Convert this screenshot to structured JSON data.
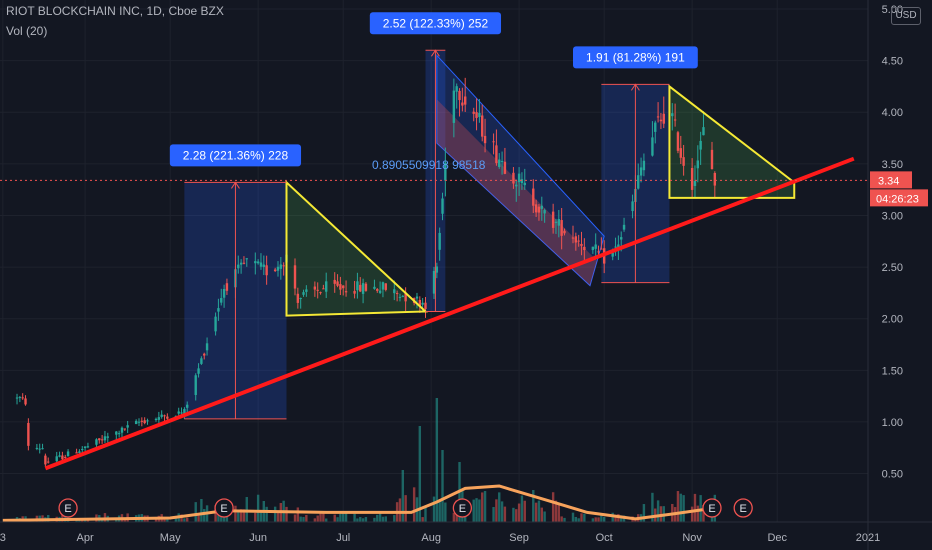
{
  "header": {
    "symbol_line": "RIOT BLOCKCHAIN INC, 1D, Cboe BZX",
    "volume_label": "Vol (20)",
    "currency_badge": "USD"
  },
  "price_tags": {
    "last_price": "3.34",
    "countdown": "04:26:23"
  },
  "colors": {
    "background": "#131722",
    "up": "#26a69a",
    "down": "#ef5350",
    "trendline": "#ff1a1a",
    "triangle": "#f5e935",
    "measure_box": "#1e4a7a",
    "measure_label": "#2962ff",
    "volume_ma": "#f7a35c",
    "last_price_line": "#ef5350"
  },
  "chart_data": {
    "type": "candlestick",
    "title": "RIOT BLOCKCHAIN INC, 1D, Cboe BZX",
    "x_ticks": [
      "3",
      "Apr",
      "May",
      "Jun",
      "Jul",
      "Aug",
      "Sep",
      "Oct",
      "Nov",
      "Dec",
      "2021"
    ],
    "y_ticks": [
      "0.50",
      "1.00",
      "1.50",
      "2.00",
      "2.50",
      "3.00",
      "3.50",
      "4.00",
      "4.50",
      "5.00"
    ],
    "ylim": [
      0.05,
      5.0
    ],
    "y_scale": "linear",
    "last_price": 3.34,
    "anchors": [
      {
        "x": "Mar 18",
        "y": 0.6
      },
      {
        "x": "Apr 1",
        "y": 0.75
      },
      {
        "x": "Apr 20",
        "y": 1.0
      },
      {
        "x": "May 6",
        "y": 1.1
      },
      {
        "x": "May 12",
        "y": 1.6
      },
      {
        "x": "May 20",
        "y": 2.3
      },
      {
        "x": "May 28",
        "y": 2.55
      },
      {
        "x": "Jun 5",
        "y": 2.45
      },
      {
        "x": "Jun 11",
        "y": 2.6
      },
      {
        "x": "Jun 15",
        "y": 2.2
      },
      {
        "x": "Jun 25",
        "y": 2.3
      },
      {
        "x": "Jul 15",
        "y": 2.3
      },
      {
        "x": "Jul 30",
        "y": 2.15
      },
      {
        "x": "Aug 3",
        "y": 2.5
      },
      {
        "x": "Aug 6",
        "y": 3.5
      },
      {
        "x": "Aug 9",
        "y": 4.3
      },
      {
        "x": "Aug 14",
        "y": 4.1
      },
      {
        "x": "Aug 24",
        "y": 3.6
      },
      {
        "x": "Sep 2",
        "y": 3.3
      },
      {
        "x": "Sep 10",
        "y": 3.0
      },
      {
        "x": "Sep 20",
        "y": 2.8
      },
      {
        "x": "Oct 3",
        "y": 2.55
      },
      {
        "x": "Oct 10",
        "y": 3.0
      },
      {
        "x": "Oct 14",
        "y": 3.45
      },
      {
        "x": "Oct 20",
        "y": 3.9
      },
      {
        "x": "Oct 24",
        "y": 4.05
      },
      {
        "x": "Oct 28",
        "y": 3.6
      },
      {
        "x": "Nov 1",
        "y": 3.3
      },
      {
        "x": "Nov 5",
        "y": 3.8
      },
      {
        "x": "Nov 9",
        "y": 3.34
      }
    ],
    "candle_count": 170,
    "volume": {
      "label": "Vol (20)",
      "spikes": [
        {
          "x": "Jul 28",
          "v": 1.2
        },
        {
          "x": "Aug 3",
          "v": 1.55
        },
        {
          "x": "Aug 5",
          "v": 0.9
        },
        {
          "x": "Aug 7",
          "v": 0.7
        },
        {
          "x": "Aug 11",
          "v": 0.75
        },
        {
          "x": "Jul 22",
          "v": 0.65
        },
        {
          "x": "Oct 24",
          "v": 0.55
        }
      ],
      "ma": [
        {
          "x": "Mar 3",
          "v": 0.02
        },
        {
          "x": "May 1",
          "v": 0.05
        },
        {
          "x": "May 20",
          "v": 0.14
        },
        {
          "x": "Jun 25",
          "v": 0.12
        },
        {
          "x": "Jul 25",
          "v": 0.12
        },
        {
          "x": "Aug 3",
          "v": 0.25
        },
        {
          "x": "Aug 13",
          "v": 0.42
        },
        {
          "x": "Aug 25",
          "v": 0.45
        },
        {
          "x": "Sep 10",
          "v": 0.28
        },
        {
          "x": "Sep 25",
          "v": 0.12
        },
        {
          "x": "Oct 12",
          "v": 0.04
        },
        {
          "x": "Oct 25",
          "v": 0.1
        },
        {
          "x": "Nov 10",
          "v": 0.18
        }
      ]
    },
    "annotations": {
      "trendline": [
        {
          "x": "Mar 18",
          "y": 0.55
        },
        {
          "x": "Dec 28",
          "y": 3.55
        }
      ],
      "measures": [
        {
          "label": "2.28 (221.36%) 228",
          "x_start": "May 6",
          "x_end": "Jun 11",
          "y_low": 1.03,
          "y_high": 3.32
        },
        {
          "label": "2.52 (122.33%) 252",
          "x_start": "Jul 30",
          "x_end": "Aug 6",
          "y_low": 2.07,
          "y_high": 4.6
        },
        {
          "label": "1.91 (81.28%) 191",
          "x_start": "Sep 30",
          "x_end": "Oct 24",
          "y_low": 2.35,
          "y_high": 4.27
        }
      ],
      "channel_label": "0.8905509918 98518",
      "channel": {
        "upper": [
          {
            "x": "Aug 3",
            "y": 4.55
          },
          {
            "x": "Oct 1",
            "y": 2.8
          }
        ],
        "lower": [
          {
            "x": "Aug 3",
            "y": 3.7
          },
          {
            "x": "Sep 26",
            "y": 2.32
          }
        ]
      },
      "triangles": [
        {
          "top": {
            "x": "Jun 11",
            "y": 3.32
          },
          "left": {
            "x": "Jun 11",
            "y": 2.03
          },
          "right": {
            "x": "Jul 30",
            "y": 2.07
          }
        },
        {
          "top": {
            "x": "Oct 24",
            "y": 4.25
          },
          "left": {
            "x": "Oct 24",
            "y": 3.17
          },
          "right": {
            "x": "Dec 7",
            "y": 3.17
          },
          "apex": {
            "x": "Dec 7",
            "y": 3.32
          }
        }
      ],
      "earnings_markers": [
        "Mar 26",
        "May 20",
        "Aug 12",
        "Nov 8",
        "Nov 19"
      ],
      "earnings_glyph": "E"
    }
  }
}
